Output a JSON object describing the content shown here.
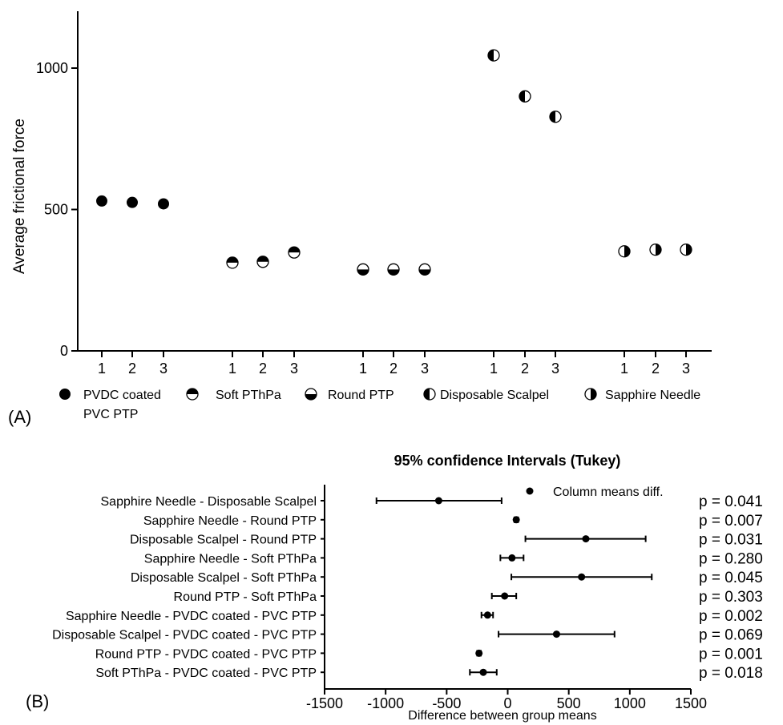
{
  "chart_data": [
    {
      "panel": "(A)",
      "type": "scatter",
      "ylabel": "Average frictional force",
      "yticks": [
        "0",
        "500",
        "1000"
      ],
      "ylim": [
        0,
        1200
      ],
      "xtick_labels": [
        "1",
        "2",
        "3"
      ],
      "groups": [
        {
          "name": "PVDC coated PVC PTP",
          "legend_lines": [
            "PVDC coated",
            "PVC PTP"
          ],
          "marker": "solid",
          "values": [
            530,
            525,
            520
          ]
        },
        {
          "name": "Soft PThPa",
          "legend_lines": [
            "Soft PThPa"
          ],
          "marker": "half-top",
          "values": [
            312,
            315,
            348
          ]
        },
        {
          "name": "Round PTP",
          "legend_lines": [
            "Round PTP"
          ],
          "marker": "half-bottom",
          "values": [
            288,
            288,
            288
          ]
        },
        {
          "name": "Disposable Scalpel",
          "legend_lines": [
            "Disposable Scalpel"
          ],
          "marker": "half-left",
          "values": [
            1045,
            900,
            828
          ]
        },
        {
          "name": "Sapphire Needle",
          "legend_lines": [
            "Sapphire Needle"
          ],
          "marker": "half-right",
          "values": [
            352,
            358,
            358
          ]
        }
      ]
    },
    {
      "panel": "(B)",
      "type": "errorbar",
      "title": "95% confidence Intervals (Tukey)",
      "xlabel": "Difference between group means",
      "xlim": [
        -1500,
        1500
      ],
      "xticks": [
        "-1500",
        "-1000",
        "-500",
        "0",
        "500",
        "1000",
        "1500"
      ],
      "legend": "Column means diff.",
      "rows": [
        {
          "label": "Sapphire Needle - Disposable Scalpel",
          "mean": -565,
          "low": -1075,
          "high": -50,
          "p": "p = 0.041"
        },
        {
          "label": "Sapphire Needle - Round PTP",
          "mean": 70,
          "low": 55,
          "high": 85,
          "p": "p = 0.007"
        },
        {
          "label": "Disposable Scalpel - Round PTP",
          "mean": 640,
          "low": 145,
          "high": 1130,
          "p": "p = 0.031"
        },
        {
          "label": "Sapphire Needle - Soft PThPa",
          "mean": 35,
          "low": -60,
          "high": 130,
          "p": "p = 0.280"
        },
        {
          "label": "Disposable Scalpel - Soft PThPa",
          "mean": 605,
          "low": 30,
          "high": 1180,
          "p": "p = 0.045"
        },
        {
          "label": "Round PTP - Soft PThPa",
          "mean": -25,
          "low": -130,
          "high": 70,
          "p": "p = 0.303"
        },
        {
          "label": "Sapphire Needle -  PVDC coated - PVC PTP",
          "mean": -165,
          "low": -215,
          "high": -120,
          "p": "p = 0.002"
        },
        {
          "label": "Disposable Scalpel -  PVDC coated - PVC PTP",
          "mean": 400,
          "low": -75,
          "high": 875,
          "p": "p = 0.069"
        },
        {
          "label": "Round PTP -  PVDC coated - PVC PTP",
          "mean": -235,
          "low": -250,
          "high": -220,
          "p": "p = 0.001"
        },
        {
          "label": "Soft PThPa -  PVDC coated - PVC PTP",
          "mean": -200,
          "low": -310,
          "high": -90,
          "p": "p = 0.018"
        }
      ]
    }
  ]
}
